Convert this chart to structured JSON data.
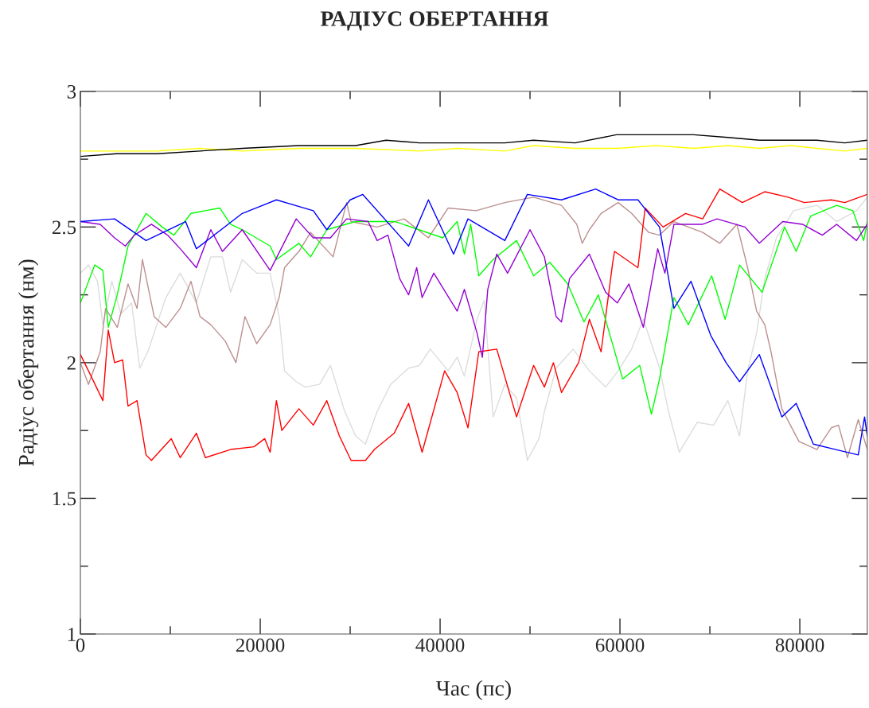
{
  "chart_data": {
    "type": "line",
    "title": "РАДІУС ОБЕРТАННЯ",
    "xlabel": "Час (пс)",
    "ylabel": "Радіус обертання (нм)",
    "xlim": [
      0,
      87500
    ],
    "ylim": [
      1,
      3
    ],
    "xticks": [
      0,
      {
        "value": 10000,
        "label": null
      },
      20000,
      {
        "value": 30000,
        "label": null
      },
      40000,
      {
        "value": 50000,
        "label": null
      },
      60000,
      {
        "value": 70000,
        "label": null
      },
      80000
    ],
    "yticks": [
      1,
      {
        "value": 1.25,
        "label": null
      },
      1.5,
      {
        "value": 1.75,
        "label": null
      },
      2,
      {
        "value": 2.25,
        "label": null
      },
      2.5,
      {
        "value": 2.75,
        "label": null
      },
      3
    ],
    "grid": false,
    "legend": false,
    "marker": "none",
    "line_style": "solid",
    "series": [
      {
        "color": "#dcdcdc",
        "x": [
          0,
          900,
          1900,
          2500,
          3500,
          4500,
          5700,
          6600,
          7500,
          8200,
          9500,
          11100,
          12900,
          14500,
          15800,
          16700,
          18000,
          19600,
          21100,
          22100,
          22700,
          24000,
          25000,
          26600,
          27800,
          29400,
          30600,
          31700,
          33000,
          34500,
          36500,
          37700,
          38900,
          40900,
          41900,
          42700,
          44100,
          44900,
          45900,
          47200,
          48500,
          49700,
          51000,
          51600,
          52900,
          54800,
          56600,
          58400,
          59800,
          61300,
          62600,
          64400,
          65400,
          66600,
          68600,
          70400,
          72000,
          73300,
          74200,
          75200,
          76100,
          77400,
          79300,
          81900,
          84100,
          86300,
          87500
        ],
        "values": [
          2.33,
          2.36,
          2.3,
          2.14,
          2.3,
          2.18,
          2.22,
          1.98,
          2.04,
          2.11,
          2.24,
          2.33,
          2.22,
          2.39,
          2.39,
          2.26,
          2.38,
          2.33,
          2.33,
          2.17,
          1.97,
          1.93,
          1.91,
          1.92,
          1.99,
          1.82,
          1.73,
          1.7,
          1.82,
          1.92,
          1.98,
          1.99,
          2.05,
          1.97,
          2.02,
          1.95,
          2.16,
          2.23,
          1.8,
          1.92,
          1.87,
          1.64,
          1.72,
          1.82,
          1.98,
          2.05,
          1.97,
          1.91,
          1.97,
          2.05,
          2.16,
          1.98,
          1.82,
          1.67,
          1.78,
          1.77,
          1.86,
          1.73,
          1.97,
          2.11,
          2.31,
          2.46,
          2.56,
          2.58,
          2.52,
          2.56,
          2.61
        ]
      },
      {
        "color": "#bc8f8f",
        "x": [
          0,
          900,
          2200,
          2800,
          4100,
          5300,
          6300,
          6900,
          8200,
          9500,
          11100,
          12300,
          13300,
          14500,
          16100,
          17300,
          18300,
          19600,
          21100,
          22100,
          22700,
          24300,
          25600,
          28100,
          29600,
          30100,
          33000,
          36000,
          38700,
          40900,
          44000,
          47200,
          50400,
          53500,
          55200,
          55800,
          56600,
          57900,
          59800,
          61300,
          63200,
          64400,
          66000,
          69200,
          71100,
          73000,
          74200,
          75200,
          76100,
          76800,
          78000,
          79900,
          81900,
          83500,
          84300,
          85300,
          86500,
          87500
        ],
        "values": [
          2.0,
          1.92,
          2.04,
          2.2,
          2.13,
          2.29,
          2.2,
          2.38,
          2.17,
          2.13,
          2.2,
          2.3,
          2.17,
          2.14,
          2.08,
          2.0,
          2.17,
          2.07,
          2.14,
          2.24,
          2.35,
          2.41,
          2.48,
          2.39,
          2.59,
          2.52,
          2.5,
          2.53,
          2.46,
          2.57,
          2.56,
          2.59,
          2.61,
          2.58,
          2.51,
          2.44,
          2.49,
          2.55,
          2.59,
          2.55,
          2.48,
          2.47,
          2.52,
          2.48,
          2.44,
          2.51,
          2.35,
          2.19,
          2.14,
          2.04,
          1.83,
          1.71,
          1.68,
          1.76,
          1.77,
          1.65,
          1.79,
          1.68
        ]
      },
      {
        "color": "#ff0000",
        "x": [
          0,
          900,
          2500,
          3100,
          3800,
          4700,
          5300,
          6300,
          7300,
          7900,
          10100,
          11100,
          12900,
          13900,
          16700,
          19300,
          20500,
          21100,
          21800,
          22400,
          24300,
          25900,
          27400,
          28800,
          30100,
          31700,
          32700,
          34900,
          36500,
          38000,
          40500,
          41900,
          43100,
          44300,
          46300,
          48500,
          50400,
          51600,
          52600,
          53500,
          55400,
          56600,
          57900,
          59200,
          59400,
          62000,
          62800,
          64800,
          67300,
          69200,
          71100,
          73600,
          76100,
          78700,
          80500,
          83500,
          85000,
          87500
        ],
        "values": [
          2.03,
          1.97,
          1.86,
          2.12,
          2.0,
          2.01,
          1.84,
          1.86,
          1.66,
          1.64,
          1.72,
          1.65,
          1.74,
          1.65,
          1.68,
          1.69,
          1.72,
          1.67,
          1.86,
          1.75,
          1.83,
          1.77,
          1.86,
          1.73,
          1.64,
          1.64,
          1.68,
          1.74,
          1.85,
          1.67,
          1.97,
          1.89,
          1.76,
          2.04,
          2.05,
          1.8,
          1.99,
          1.91,
          2.0,
          1.89,
          2.0,
          2.16,
          2.04,
          2.37,
          2.41,
          2.35,
          2.57,
          2.5,
          2.55,
          2.53,
          2.64,
          2.59,
          2.63,
          2.61,
          2.59,
          2.6,
          2.59,
          2.62
        ]
      },
      {
        "color": "#00ff00",
        "x": [
          0,
          1600,
          2500,
          3100,
          4100,
          5300,
          7300,
          9100,
          10400,
          12300,
          15500,
          16700,
          18000,
          21100,
          21800,
          24300,
          25600,
          27400,
          30600,
          35000,
          40300,
          41900,
          42700,
          43400,
          44300,
          45900,
          48500,
          50400,
          52200,
          54200,
          56000,
          57600,
          59600,
          60300,
          62200,
          63500,
          64400,
          66000,
          67600,
          70200,
          71700,
          73300,
          75800,
          78300,
          79600,
          81200,
          84100,
          85900,
          87100,
          87500
        ],
        "values": [
          2.22,
          2.36,
          2.34,
          2.13,
          2.25,
          2.43,
          2.55,
          2.5,
          2.47,
          2.55,
          2.57,
          2.51,
          2.49,
          2.43,
          2.38,
          2.44,
          2.39,
          2.49,
          2.52,
          2.52,
          2.46,
          2.52,
          2.4,
          2.51,
          2.32,
          2.38,
          2.45,
          2.32,
          2.37,
          2.29,
          2.15,
          2.25,
          2.02,
          1.94,
          1.99,
          1.81,
          1.94,
          2.24,
          2.14,
          2.32,
          2.16,
          2.36,
          2.26,
          2.5,
          2.41,
          2.54,
          2.58,
          2.56,
          2.45,
          2.52
        ]
      },
      {
        "color": "#9400d3",
        "x": [
          0,
          2200,
          3800,
          5000,
          6000,
          7900,
          9700,
          11100,
          12900,
          14500,
          15800,
          18000,
          21100,
          24000,
          25900,
          27800,
          29600,
          32000,
          33000,
          34200,
          35500,
          36500,
          37400,
          38000,
          39300,
          41900,
          42700,
          44100,
          44700,
          45300,
          46300,
          47500,
          50000,
          51600,
          52900,
          53500,
          54400,
          56600,
          58400,
          59700,
          61000,
          62600,
          64200,
          65000,
          66000,
          69200,
          70800,
          73900,
          75500,
          78100,
          80300,
          82500,
          84100,
          86300,
          87500
        ],
        "values": [
          2.52,
          2.51,
          2.46,
          2.43,
          2.47,
          2.51,
          2.47,
          2.42,
          2.35,
          2.49,
          2.41,
          2.49,
          2.34,
          2.53,
          2.46,
          2.46,
          2.53,
          2.52,
          2.45,
          2.47,
          2.31,
          2.25,
          2.35,
          2.24,
          2.33,
          2.19,
          2.27,
          2.11,
          2.02,
          2.27,
          2.4,
          2.33,
          2.49,
          2.39,
          2.17,
          2.15,
          2.31,
          2.4,
          2.26,
          2.22,
          2.29,
          2.13,
          2.42,
          2.33,
          2.51,
          2.51,
          2.53,
          2.5,
          2.44,
          2.52,
          2.51,
          2.47,
          2.51,
          2.45,
          2.51
        ]
      },
      {
        "color": "#0000ff",
        "x": [
          0,
          3800,
          7300,
          11700,
          12900,
          18000,
          21800,
          25900,
          27400,
          30000,
          31400,
          36500,
          38700,
          41500,
          43100,
          47200,
          49700,
          53500,
          57300,
          59800,
          62000,
          64400,
          66000,
          67900,
          70100,
          71800,
          73300,
          75500,
          78000,
          79600,
          81500,
          84000,
          86500,
          87200,
          87500
        ],
        "values": [
          2.52,
          2.53,
          2.45,
          2.52,
          2.42,
          2.55,
          2.6,
          2.56,
          2.49,
          2.6,
          2.62,
          2.43,
          2.6,
          2.4,
          2.53,
          2.45,
          2.62,
          2.6,
          2.64,
          2.6,
          2.6,
          2.5,
          2.2,
          2.3,
          2.1,
          2.0,
          1.93,
          2.03,
          1.8,
          1.85,
          1.7,
          1.68,
          1.66,
          1.8,
          1.73
        ]
      },
      {
        "color": "#ffff00",
        "x": [
          0,
          4000,
          8500,
          13300,
          18000,
          24300,
          30600,
          37700,
          42000,
          47200,
          50400,
          55000,
          59700,
          64000,
          68200,
          72000,
          75500,
          79000,
          81900,
          85000,
          87500
        ],
        "values": [
          2.78,
          2.78,
          2.78,
          2.79,
          2.78,
          2.79,
          2.79,
          2.78,
          2.79,
          2.78,
          2.8,
          2.79,
          2.79,
          2.8,
          2.79,
          2.8,
          2.79,
          2.8,
          2.79,
          2.78,
          2.79
        ]
      },
      {
        "color": "#000000",
        "x": [
          0,
          4000,
          8500,
          13300,
          18000,
          24300,
          30600,
          34000,
          37700,
          42000,
          47200,
          50400,
          55000,
          59600,
          64000,
          68200,
          72000,
          75500,
          79000,
          81900,
          85000,
          87500
        ],
        "values": [
          2.76,
          2.77,
          2.77,
          2.78,
          2.79,
          2.8,
          2.8,
          2.82,
          2.81,
          2.81,
          2.81,
          2.82,
          2.81,
          2.84,
          2.84,
          2.84,
          2.83,
          2.82,
          2.82,
          2.82,
          2.81,
          2.82
        ]
      }
    ]
  }
}
